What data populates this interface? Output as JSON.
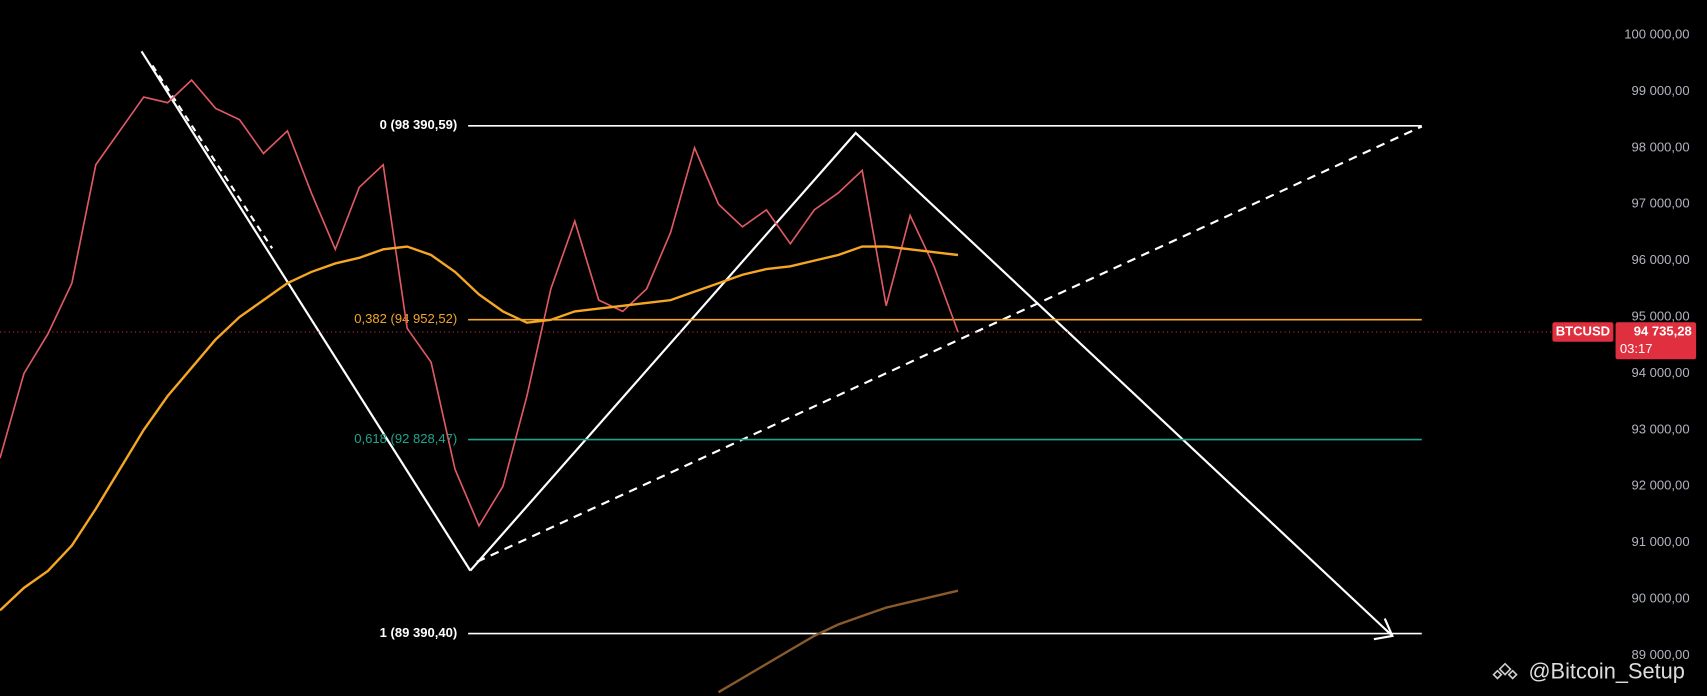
{
  "chart_data": {
    "type": "line",
    "symbol": "BTCUSD",
    "countdown": "03:17",
    "last_price": {
      "value": 94735.28,
      "label": "94 735,28"
    },
    "watermark": "@Bitcoin_Setup",
    "ylim": [
      88286,
      100617
    ],
    "yticks": [
      {
        "value": 89000,
        "label": "89 000,00"
      },
      {
        "value": 90000,
        "label": "90 000,00"
      },
      {
        "value": 91000,
        "label": "91 000,00"
      },
      {
        "value": 92000,
        "label": "92 000,00"
      },
      {
        "value": 93000,
        "label": "93 000,00"
      },
      {
        "value": 94000,
        "label": "94 000,00"
      },
      {
        "value": 95000,
        "label": "95 000,00"
      },
      {
        "value": 96000,
        "label": "96 000,00"
      },
      {
        "value": 97000,
        "label": "97 000,00"
      },
      {
        "value": 98000,
        "label": "98 000,00"
      },
      {
        "value": 99000,
        "label": "99 000,00"
      },
      {
        "value": 100000,
        "label": "100 000,00"
      }
    ],
    "fib_levels": [
      {
        "value": 98390.59,
        "label": "0 (98 390,59)",
        "color": "#ffffff"
      },
      {
        "value": 94952.52,
        "label": "0,382 (94 952,52)",
        "color": "#f5a623"
      },
      {
        "value": 92828.47,
        "label": "0,618 (92 828,47)",
        "color": "#1fa48f"
      },
      {
        "value": 89390.4,
        "label": "1 (89 390,40)",
        "color": "#ffffff"
      }
    ],
    "series": [
      {
        "color": "#e05a64",
        "values": [
          92500,
          94000,
          94700,
          95600,
          97700,
          98300,
          98900,
          98800,
          99200,
          98700,
          98500,
          97900,
          98300,
          97200,
          96200,
          97300,
          97700,
          94800,
          94200,
          92300,
          91300,
          92000,
          93600,
          95500,
          96700,
          95300,
          95100,
          95500,
          96500,
          98000,
          97000,
          96600,
          96900,
          96300,
          96900,
          97200,
          97600,
          95200,
          96800,
          95900,
          94735.28
        ]
      },
      {
        "color": "#f5a623",
        "values": [
          89800,
          90200,
          90500,
          90950,
          91600,
          92300,
          93000,
          93600,
          94100,
          94600,
          95000,
          95300,
          95600,
          95800,
          95950,
          96050,
          96200,
          96250,
          96100,
          95800,
          95400,
          95100,
          94900,
          94950,
          95100,
          95150,
          95200,
          95250,
          95300,
          95450,
          95600,
          95750,
          95850,
          95900,
          96000,
          96100,
          96250,
          96250,
          96200,
          96150,
          96100
        ]
      },
      {
        "color": "#8b5a2b",
        "values": [
          null,
          null,
          null,
          null,
          null,
          null,
          null,
          null,
          null,
          null,
          null,
          null,
          null,
          null,
          null,
          null,
          null,
          null,
          null,
          null,
          null,
          null,
          null,
          null,
          null,
          null,
          null,
          null,
          null,
          null,
          88350,
          88600,
          88850,
          89100,
          89350,
          89550,
          89700,
          89850,
          89950,
          90050,
          90150
        ]
      }
    ]
  }
}
